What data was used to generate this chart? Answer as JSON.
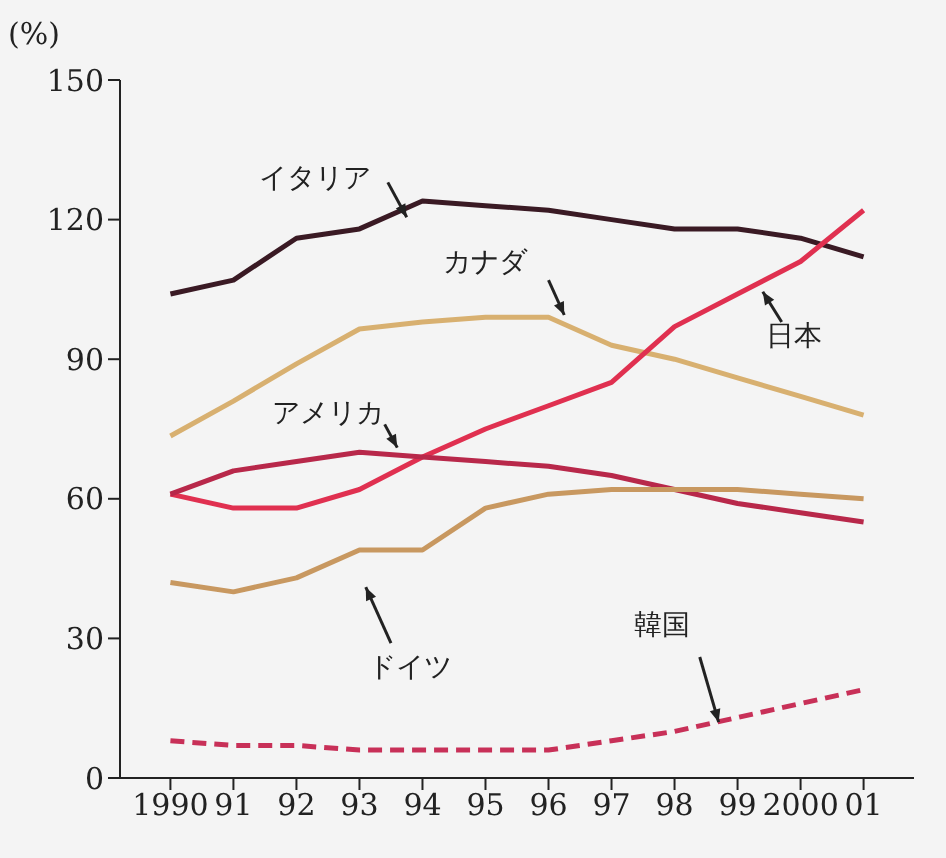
{
  "chart_data": {
    "type": "line",
    "ylabel": "(%)",
    "categories": [
      "1990",
      "91",
      "92",
      "93",
      "94",
      "95",
      "96",
      "97",
      "98",
      "99",
      "2000",
      "01"
    ],
    "ylim": [
      0,
      150
    ],
    "yticks": [
      0,
      30,
      60,
      90,
      120,
      150
    ],
    "grid": false,
    "marker": "none",
    "series": [
      {
        "name": "イタリア",
        "color": "#3a1a24",
        "line_style": "solid",
        "values": [
          104,
          107,
          116,
          118,
          124,
          123,
          122,
          120,
          118,
          118,
          116,
          112
        ]
      },
      {
        "name": "カナダ",
        "color": "#d8b070",
        "line_style": "solid",
        "values": [
          73.5,
          81,
          89,
          96.5,
          98,
          99,
          99,
          93,
          90,
          86,
          82,
          78
        ]
      },
      {
        "name": "日本",
        "color": "#e03050",
        "line_style": "solid",
        "values": [
          61,
          58,
          58,
          62,
          69,
          75,
          80,
          85,
          97,
          104,
          111,
          122
        ]
      },
      {
        "name": "アメリカ",
        "color": "#b8284a",
        "line_style": "solid",
        "values": [
          61,
          66,
          68,
          70,
          69,
          68,
          67,
          65,
          62,
          59,
          57,
          55
        ]
      },
      {
        "name": "ドイツ",
        "color": "#c89860",
        "line_style": "solid",
        "values": [
          42,
          40,
          43,
          49,
          49,
          58,
          61,
          62,
          62,
          62,
          61,
          60
        ]
      },
      {
        "name": "韓国",
        "color": "#c83058",
        "line_style": "dashed",
        "values": [
          8,
          7,
          7,
          6,
          6,
          6,
          6,
          8,
          10,
          13,
          16,
          19
        ]
      }
    ]
  }
}
